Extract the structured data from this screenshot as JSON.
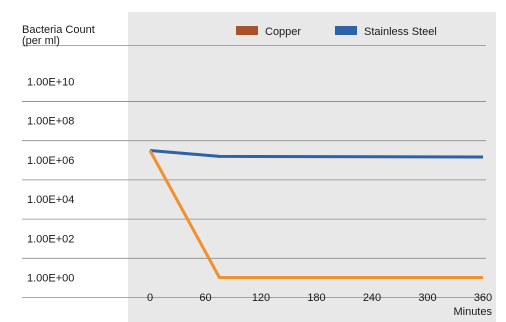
{
  "chart_data": {
    "type": "line",
    "ylabel_line1": "Bacteria Count",
    "ylabel_line2": "(per ml)",
    "xlabel": "Minutes",
    "y_scale": "log",
    "ylim": [
      "1.00E+00",
      "1.00E+10"
    ],
    "y_ticks": [
      "1.00E+10",
      "1.00E+08",
      "1.00E+06",
      "1.00E+04",
      "1.00E+02",
      "1.00E+00"
    ],
    "y_tick_values": [
      10000000000,
      100000000,
      1000000,
      10000,
      100,
      1
    ],
    "x_ticks": [
      0,
      60,
      120,
      180,
      240,
      300,
      360
    ],
    "xlim": [
      0,
      360
    ],
    "grid": true,
    "legend_position": "top",
    "series": [
      {
        "name": "Copper",
        "color": "#f0902f",
        "legend_color": "#a9532a",
        "points": [
          [
            0,
            3000000
          ],
          [
            75,
            1
          ],
          [
            360,
            1
          ]
        ]
      },
      {
        "name": "Stainless Steel",
        "color": "#2e62a8",
        "legend_color": "#2e62a8",
        "points": [
          [
            0,
            3000000
          ],
          [
            75,
            1500000
          ],
          [
            360,
            1400000
          ]
        ]
      }
    ]
  }
}
